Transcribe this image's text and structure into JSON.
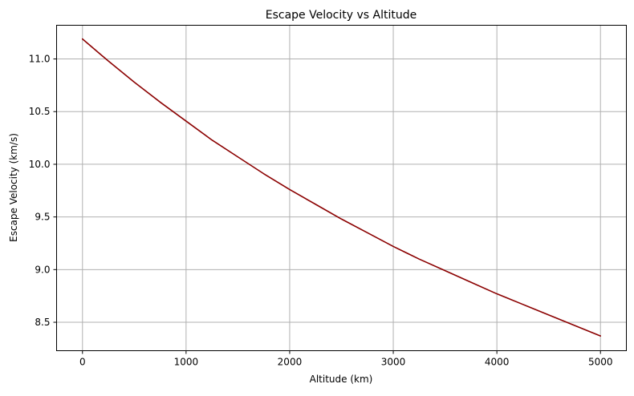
{
  "chart_data": {
    "type": "line",
    "title": "Escape Velocity vs Altitude",
    "xlabel": "Altitude (km)",
    "ylabel": "Escape Velocity (km/s)",
    "xlim": [
      -250,
      5250
    ],
    "ylim": [
      8.23,
      11.32
    ],
    "xticks": [
      0,
      1000,
      2000,
      3000,
      4000,
      5000
    ],
    "xtick_labels": [
      "0",
      "1000",
      "2000",
      "3000",
      "4000",
      "5000"
    ],
    "yticks": [
      8.5,
      9.0,
      9.5,
      10.0,
      10.5,
      11.0
    ],
    "ytick_labels": [
      "8.5",
      "9.0",
      "9.5",
      "10.0",
      "10.5",
      "11.0"
    ],
    "grid": true,
    "legend": "none",
    "series": [
      {
        "color": "#8b0000",
        "x": [
          0,
          250,
          500,
          750,
          1000,
          1250,
          1500,
          1750,
          2000,
          2250,
          2500,
          2750,
          3000,
          3250,
          3500,
          3750,
          4000,
          4250,
          4500,
          4750,
          5000
        ],
        "y": [
          11.19,
          10.98,
          10.78,
          10.59,
          10.41,
          10.23,
          10.07,
          9.91,
          9.76,
          9.62,
          9.48,
          9.35,
          9.22,
          9.1,
          8.99,
          8.88,
          8.77,
          8.67,
          8.57,
          8.47,
          8.37
        ]
      }
    ]
  }
}
